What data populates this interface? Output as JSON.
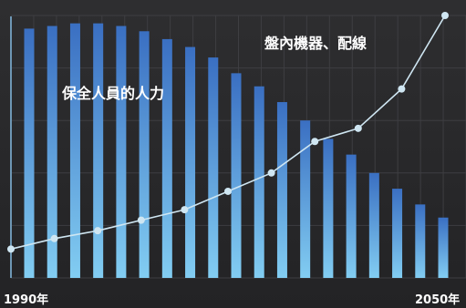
{
  "chart_data": {
    "type": "bar",
    "x_start_label": "1990年",
    "x_end_label": "2050年",
    "bar_series": {
      "name": "保全人員的人力",
      "values": [
        95,
        96,
        97,
        97,
        96,
        94,
        91,
        88,
        84,
        78,
        73,
        67,
        60,
        53,
        47,
        40,
        34,
        28,
        23
      ]
    },
    "line_series": {
      "name": "盤內機器、配線",
      "values": [
        11,
        15,
        18,
        22,
        26,
        33,
        40,
        52,
        57,
        72,
        100
      ]
    },
    "ylim": [
      0,
      100
    ],
    "grid": true,
    "colors": {
      "bar_top": "#3f78c7",
      "bar_bottom": "#7ec9f0",
      "line": "#cfe6f2",
      "grid": "#3e3e42"
    }
  }
}
